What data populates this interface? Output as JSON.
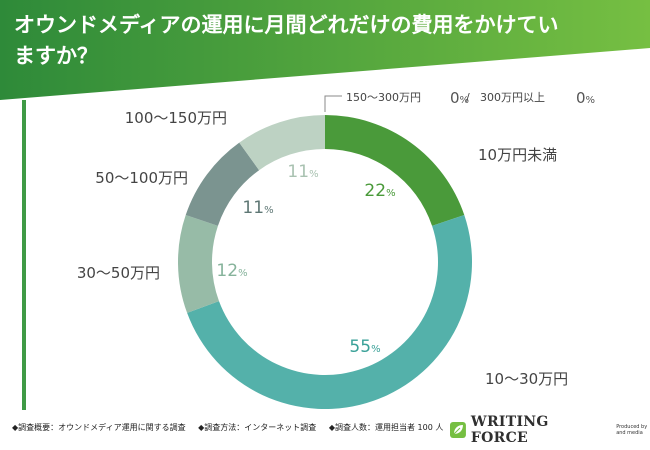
{
  "chart_data": {
    "type": "pie",
    "variant": "donut",
    "title": "オウンドメディアの運用に月間どれだけの費用をかけていますか？",
    "slices": [
      {
        "label": "10万円未満",
        "value": 22,
        "color": "#4a9a3a",
        "label_color": "#4a9a3a"
      },
      {
        "label": "10〜30万円",
        "value": 55,
        "color": "#54b1aa",
        "label_color": "#3aa198"
      },
      {
        "label": "30〜50万円",
        "value": 12,
        "color": "#97bba7",
        "label_color": "#86b39b"
      },
      {
        "label": "50〜100万円",
        "value": 11,
        "color": "#7b9490",
        "label_color": "#5e7774"
      },
      {
        "label": "100〜150万円",
        "value": 11,
        "color": "#bdd2c3",
        "label_color": "#a9c2b1"
      },
      {
        "label": "150〜300万円",
        "value": 0,
        "color": "#bdd2c3",
        "label_color": "#555555"
      },
      {
        "label": "300万円以上",
        "value": 0,
        "color": "#bdd2c3",
        "label_color": "#555555"
      }
    ],
    "value_suffix": "%"
  },
  "footer": {
    "survey": "◆調査概要：オウンドメディア運用に関する調査",
    "method": "◆調査方法：インターネット調査",
    "respondents": "◆調査人数：運用担当者 100 人"
  },
  "brand": {
    "name": "WRITING FORCE",
    "produced_by": "Produced by and media"
  },
  "colors": {
    "header_dark": "#2e8a39",
    "header_light": "#76bf42",
    "outer_bar": "#3f9a45"
  }
}
